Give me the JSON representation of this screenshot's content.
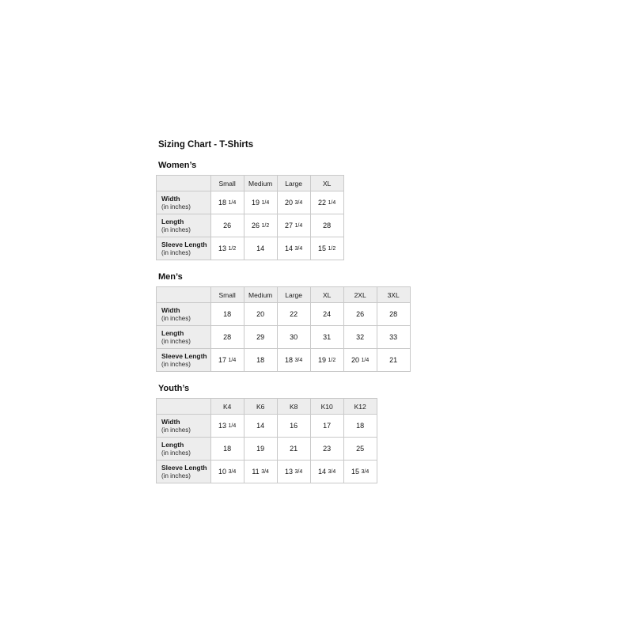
{
  "page": {
    "title": "Sizing Chart - T-Shirts"
  },
  "sections": [
    {
      "heading": "Women’s",
      "columns": [
        "Small",
        "Medium",
        "Large",
        "XL"
      ],
      "rows": [
        {
          "label": "Width",
          "sublabel": "(in inches)",
          "values": [
            "18 1/4",
            "19 1/4",
            "20 3/4",
            "22 1/4"
          ]
        },
        {
          "label": "Length",
          "sublabel": "(in inches)",
          "values": [
            "26",
            "26 1/2",
            "27 1/4",
            "28"
          ]
        },
        {
          "label": "Sleeve Length",
          "sublabel": "(in inches)",
          "values": [
            "13 1/2",
            "14",
            "14 3/4",
            "15 1/2"
          ]
        }
      ]
    },
    {
      "heading": "Men’s",
      "columns": [
        "Small",
        "Medium",
        "Large",
        "XL",
        "2XL",
        "3XL"
      ],
      "rows": [
        {
          "label": "Width",
          "sublabel": "(in inches)",
          "values": [
            "18",
            "20",
            "22",
            "24",
            "26",
            "28"
          ]
        },
        {
          "label": "Length",
          "sublabel": "(in inches)",
          "values": [
            "28",
            "29",
            "30",
            "31",
            "32",
            "33"
          ]
        },
        {
          "label": "Sleeve Length",
          "sublabel": "(in inches)",
          "values": [
            "17 1/4",
            "18",
            "18 3/4",
            "19 1/2",
            "20 1/4",
            "21"
          ]
        }
      ]
    },
    {
      "heading": "Youth’s",
      "columns": [
        "K4",
        "K6",
        "K8",
        "K10",
        "K12"
      ],
      "rows": [
        {
          "label": "Width",
          "sublabel": "(in inches)",
          "values": [
            "13 1/4",
            "14",
            "16",
            "17",
            "18"
          ]
        },
        {
          "label": "Length",
          "sublabel": "(in inches)",
          "values": [
            "18",
            "19",
            "21",
            "23",
            "25"
          ]
        },
        {
          "label": "Sleeve Length",
          "sublabel": "(in inches)",
          "values": [
            "10 3/4",
            "11 3/4",
            "13 3/4",
            "14 3/4",
            "15 3/4"
          ]
        }
      ]
    }
  ]
}
